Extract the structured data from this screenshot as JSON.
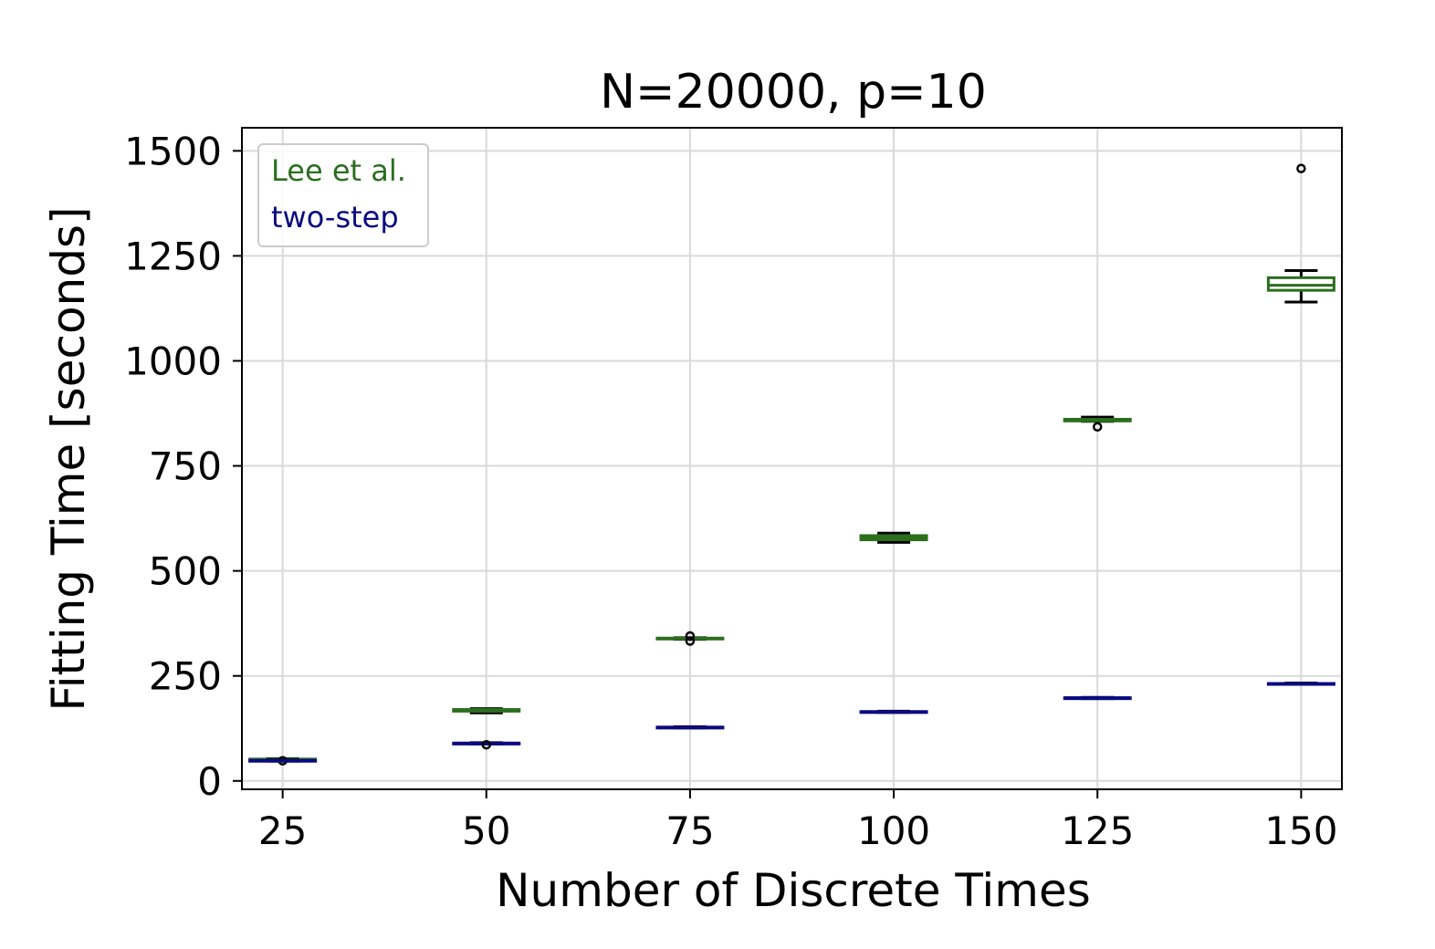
{
  "chart_data": {
    "type": "box",
    "title": "N=20000, p=10",
    "xlabel": "Number of Discrete Times",
    "ylabel": "Fitting Time [seconds]",
    "categories": [
      25,
      50,
      75,
      100,
      125,
      150
    ],
    "xlim": [
      20,
      155
    ],
    "ylim": [
      -20,
      1555
    ],
    "yticks": [
      0,
      250,
      500,
      750,
      1000,
      1250,
      1500
    ],
    "grid": true,
    "legend_position": "top-left",
    "series": [
      {
        "name": "Lee et al.",
        "color": "#2b6e1f",
        "boxes": [
          {
            "x": 25,
            "whislo": 49,
            "q1": 50,
            "med": 51,
            "q3": 52,
            "whishi": 53,
            "fliers": [
              48
            ]
          },
          {
            "x": 50,
            "whislo": 162,
            "q1": 166,
            "med": 168,
            "q3": 170,
            "whishi": 172,
            "fliers": []
          },
          {
            "x": 75,
            "whislo": 337,
            "q1": 338,
            "med": 339,
            "q3": 340,
            "whishi": 341,
            "fliers": [
              333,
              345
            ]
          },
          {
            "x": 100,
            "whislo": 568,
            "q1": 574,
            "med": 579,
            "q3": 584,
            "whishi": 590,
            "fliers": []
          },
          {
            "x": 125,
            "whislo": 856,
            "q1": 857,
            "med": 859,
            "q3": 861,
            "whishi": 866,
            "fliers": [
              843
            ]
          },
          {
            "x": 150,
            "whislo": 1140,
            "q1": 1168,
            "med": 1180,
            "q3": 1198,
            "whishi": 1215,
            "fliers": [
              1458
            ]
          }
        ]
      },
      {
        "name": "two-step",
        "color": "#0a0a80",
        "boxes": [
          {
            "x": 25,
            "whislo": 47,
            "q1": 48,
            "med": 48,
            "q3": 49,
            "whishi": 50,
            "fliers": []
          },
          {
            "x": 50,
            "whislo": 88,
            "q1": 89,
            "med": 90,
            "q3": 90,
            "whishi": 91,
            "fliers": [
              86
            ]
          },
          {
            "x": 75,
            "whislo": 126,
            "q1": 127,
            "med": 128,
            "q3": 128,
            "whishi": 129,
            "fliers": []
          },
          {
            "x": 100,
            "whislo": 163,
            "q1": 164,
            "med": 165,
            "q3": 165,
            "whishi": 166,
            "fliers": []
          },
          {
            "x": 125,
            "whislo": 196,
            "q1": 197,
            "med": 198,
            "q3": 198,
            "whishi": 199,
            "fliers": []
          },
          {
            "x": 150,
            "whislo": 230,
            "q1": 231,
            "med": 232,
            "q3": 232,
            "whishi": 233,
            "fliers": []
          }
        ]
      }
    ]
  }
}
